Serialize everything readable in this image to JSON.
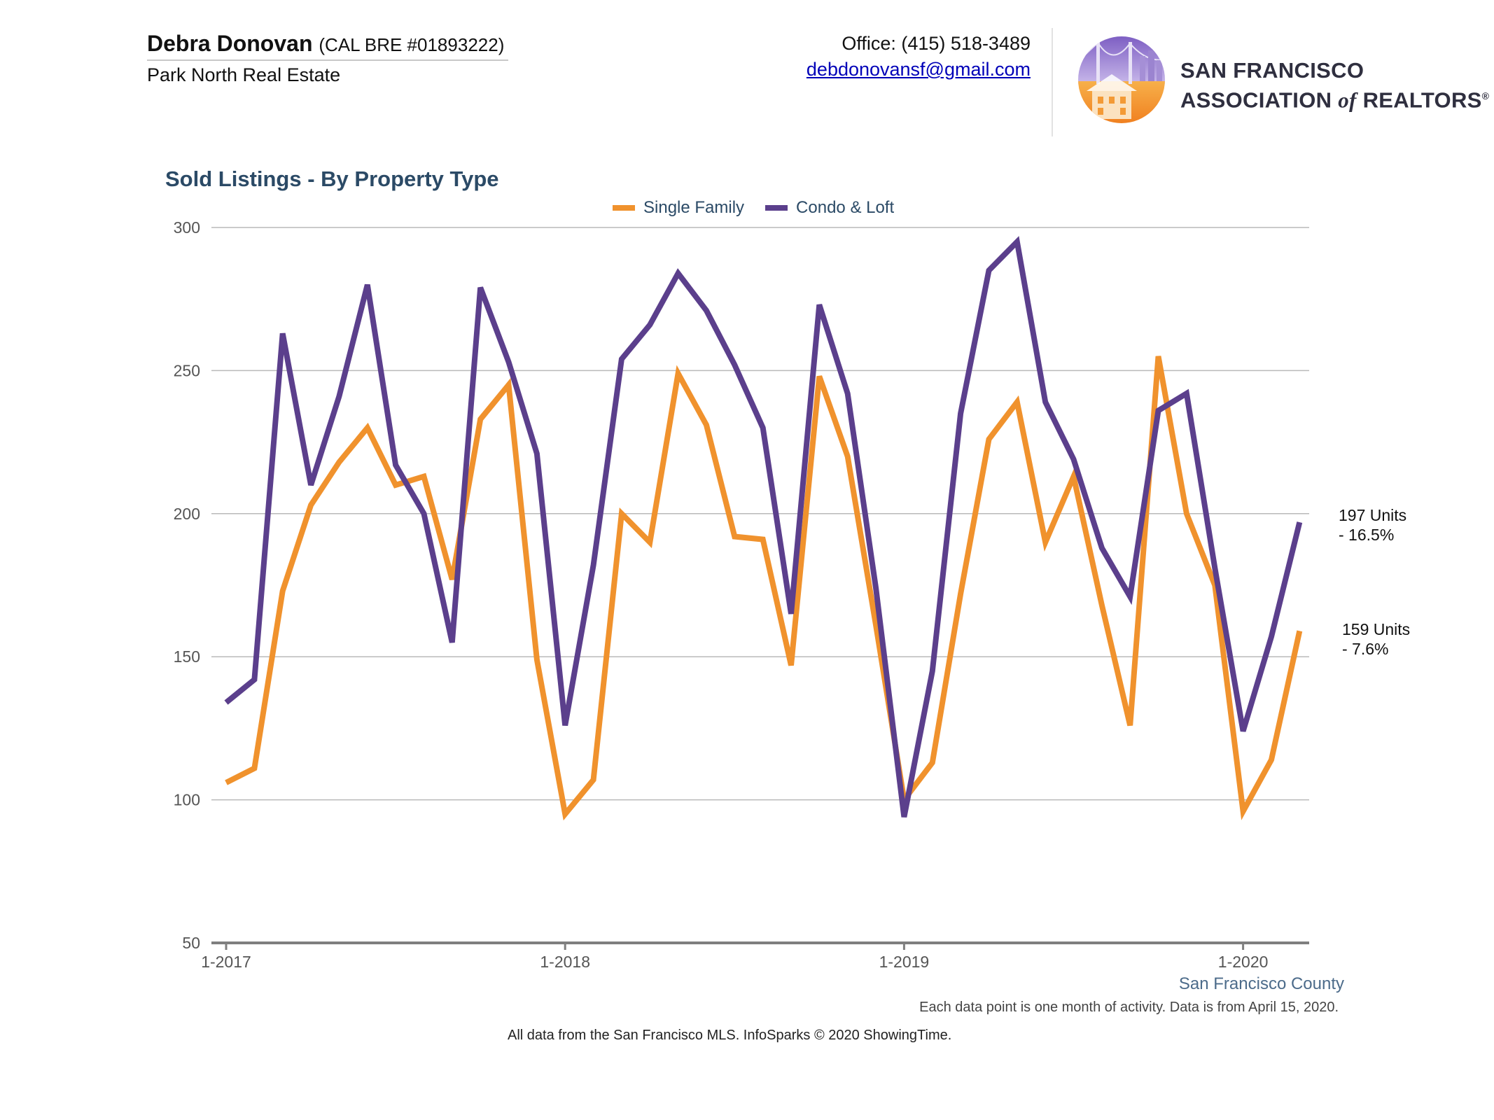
{
  "header": {
    "agent_name": "Debra Donovan",
    "license": "(CAL BRE #01893222)",
    "company": "Park North Real Estate",
    "office": "Office: (415) 518-3489",
    "email": "debdonovansf@gmail.com",
    "logo_line1": "SAN FRANCISCO",
    "logo_line2_a": "ASSOCIATION",
    "logo_line2_of": "of",
    "logo_line2_b": "REALTORS",
    "logo_reg": "®"
  },
  "colors": {
    "single_family": "#f0922d",
    "condo_loft": "#5b3f8c",
    "grid": "#b9b9b9",
    "axis": "#7f7f7f",
    "title": "#2b4a66"
  },
  "chart_data": {
    "type": "line",
    "title": "Sold Listings - By Property Type",
    "ylim": [
      50,
      300
    ],
    "yticks": [
      50,
      100,
      150,
      200,
      250,
      300
    ],
    "x_start": "2017-01",
    "x_ticks": [
      "1-2017",
      "1-2018",
      "1-2019",
      "1-2020"
    ],
    "grid": true,
    "legend_position": "top-center",
    "series": [
      {
        "name": "Single Family",
        "values": [
          106,
          111,
          173,
          203,
          218,
          230,
          210,
          213,
          177,
          233,
          245,
          149,
          95,
          107,
          200,
          190,
          249,
          231,
          192,
          191,
          147,
          248,
          220,
          161,
          100,
          113,
          172,
          226,
          239,
          190,
          213,
          168,
          126,
          255,
          200,
          175,
          96,
          114,
          159
        ],
        "end_label_1": "159 Units",
        "end_label_2": "- 7.6%"
      },
      {
        "name": "Condo & Loft",
        "values": [
          134,
          142,
          263,
          210,
          241,
          280,
          217,
          200,
          155,
          279,
          253,
          221,
          126,
          182,
          254,
          266,
          284,
          271,
          252,
          230,
          165,
          273,
          242,
          174,
          94,
          145,
          235,
          285,
          295,
          239,
          219,
          188,
          171,
          236,
          242,
          181,
          124,
          157,
          197
        ],
        "end_label_1": "197 Units",
        "end_label_2": "- 16.5%"
      }
    ]
  },
  "footer": {
    "county": "San Francisco County",
    "note": "Each data point is one month of activity. Data is from April 15, 2020.",
    "source": "All data from the San Francisco MLS. InfoSparks © 2020 ShowingTime."
  }
}
